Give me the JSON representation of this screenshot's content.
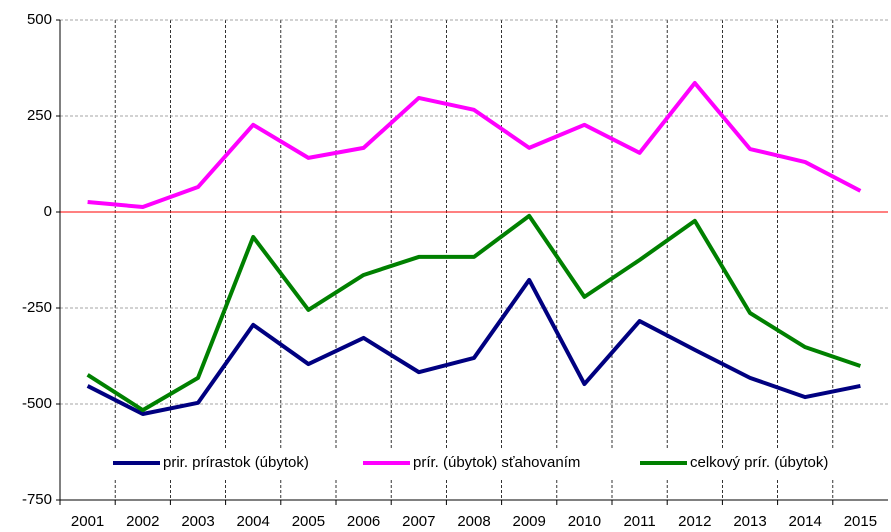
{
  "chart_data": {
    "type": "line",
    "categories": [
      "2001",
      "2002",
      "2003",
      "2004",
      "2005",
      "2006",
      "2007",
      "2008",
      "2009",
      "2010",
      "2011",
      "2012",
      "2013",
      "2014",
      "2015"
    ],
    "series": [
      {
        "name": "prir. prírastok (úbytok)",
        "color": "#000080",
        "values": [
          -453,
          -526,
          -497,
          -294,
          -396,
          -328,
          -417,
          -380,
          -177,
          -448,
          -284,
          -359,
          -432,
          -482,
          -453
        ]
      },
      {
        "name": "prír. (úbytok) sťahovaním",
        "color": "#ff00ff",
        "values": [
          26,
          13,
          65,
          227,
          141,
          167,
          297,
          266,
          167,
          227,
          154,
          336,
          164,
          130,
          55
        ]
      },
      {
        "name": "celkový prír. (úbytok)",
        "color": "#008000",
        "values": [
          -424,
          -516,
          -432,
          -65,
          -255,
          -164,
          -117,
          -117,
          -10,
          -221,
          -125,
          -23,
          -263,
          -352,
          -401
        ]
      }
    ],
    "ylim": [
      -750,
      500
    ],
    "yticks": [
      -750,
      -500,
      -250,
      0,
      250,
      500
    ],
    "grid": true,
    "zero_line_color": "#ff0000",
    "legend": "bottom"
  }
}
